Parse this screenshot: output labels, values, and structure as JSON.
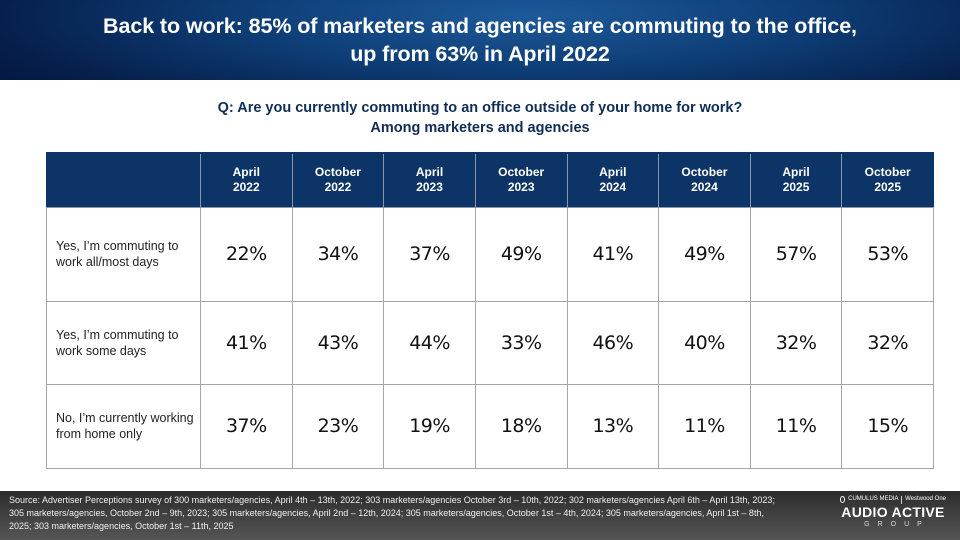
{
  "title": "Back to work: 85% of marketers and agencies are commuting to the office, up from 63% in April 2022",
  "question": {
    "line1": "Q: Are you currently commuting to an office outside of your home for work?",
    "line2": "Among marketers and agencies"
  },
  "chart_data": {
    "type": "table",
    "title": "Q: Are you currently commuting to an office outside of your home for work? Among marketers and agencies",
    "columns": [
      {
        "month": "April",
        "year": "2022"
      },
      {
        "month": "October",
        "year": "2022"
      },
      {
        "month": "April",
        "year": "2023"
      },
      {
        "month": "October",
        "year": "2023"
      },
      {
        "month": "April",
        "year": "2024"
      },
      {
        "month": "October",
        "year": "2024"
      },
      {
        "month": "April",
        "year": "2025"
      },
      {
        "month": "October",
        "year": "2025"
      }
    ],
    "rows": [
      {
        "label": "Yes, I’m commuting to work all/most days",
        "values": [
          "22%",
          "34%",
          "37%",
          "49%",
          "41%",
          "49%",
          "57%",
          "53%"
        ]
      },
      {
        "label": "Yes, I’m commuting to work some days",
        "values": [
          "41%",
          "43%",
          "44%",
          "33%",
          "46%",
          "40%",
          "32%",
          "32%"
        ]
      },
      {
        "label": "No, I’m currently working from home only",
        "values": [
          "37%",
          "23%",
          "19%",
          "18%",
          "13%",
          "11%",
          "11%",
          "15%"
        ]
      }
    ],
    "unit": "percent"
  },
  "footer": {
    "source": "Source: Advertiser Perceptions survey of 300 marketers/agencies, April 4th – 13th, 2022; 303 marketers/agencies October 3rd – 10th, 2022; 302 marketers/agencies April 6th – April 13th, 2023; 305 marketers/agencies, October 2nd – 9th, 2023; 305 marketers/agencies, April 2nd – 12th, 2024; 305 marketers/agencies, October 1st – 4th, 2024; 305 marketers/agencies, April 1st – 8th, 2025; 303 marketers/agencies, October 1st – 11th, 2025",
    "logo": {
      "partner1": "CUMULUS MEDIA",
      "partner2": "Westwood One",
      "brand": "AUDIO ACTIVE",
      "group": "GROUP"
    }
  },
  "colors": {
    "header_bg": "#0d3466",
    "title_bar": "#0d3b73",
    "question_text": "#0f2d55",
    "footer_bg": "#3f3f3f"
  }
}
